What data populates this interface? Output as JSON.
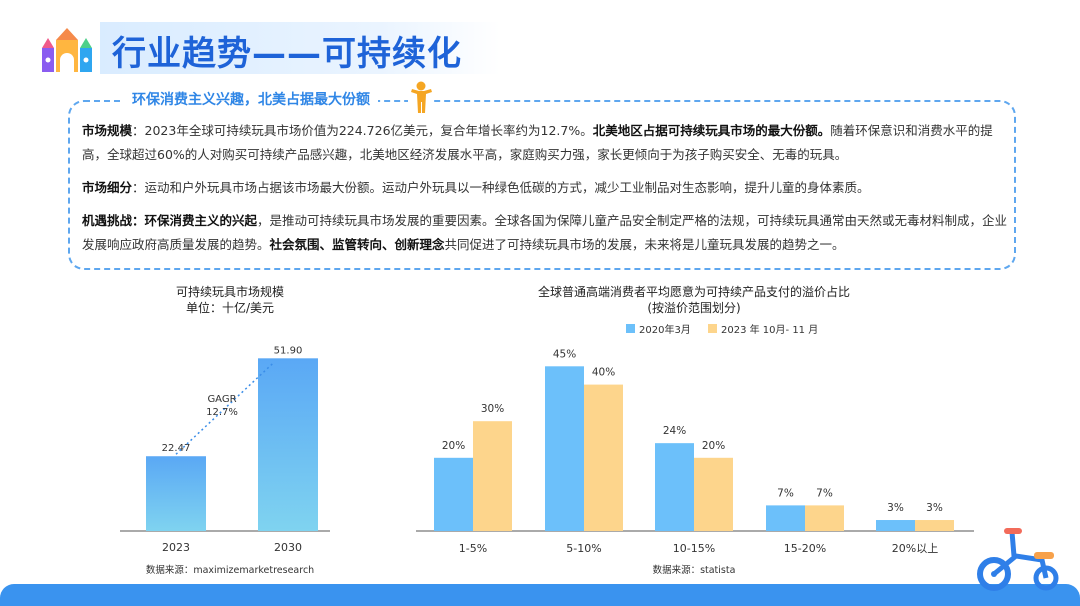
{
  "header": {
    "title": "行业趋势——可持续化",
    "logo_icon": "toy-castle-icon"
  },
  "summary": {
    "subtitle": "环保消费主义兴趣，北美占据最大份额",
    "subtitle_icon": "child-icon",
    "p1_label": "市场规模",
    "p1_text1": "：2023年全球可持续玩具市场价值为224.726亿美元，复合年增长率约为12.7%。",
    "p1_bold": "北美地区占据可持续玩具市场的最大份额。",
    "p1_text2": "随着环保意识和消费水平的提高，全球超过60%的人对购买可持续产品感兴趣，北美地区经济发展水平高，家庭购买力强，家长更倾向于为孩子购买安全、无毒的玩具。",
    "p2_label": "市场细分",
    "p2_text": "：运动和户外玩具市场占据该市场最大份额。运动户外玩具以一种绿色低碳的方式，减少工业制品对生态影响，提升儿童的身体素质。",
    "p3_label": "机遇挑战：",
    "p3_bold1": "环保消费主义的兴起",
    "p3_text1": "，是推动可持续玩具市场发展的重要因素。全球各国为保障儿童产品安全制定严格的法规，可持续玩具通常由天然或无毒材料制成，企业发展响应政府高质量发展的趋势。",
    "p3_bold2": "社会氛围、监管转向、创新理念",
    "p3_text2": "共同促进了可持续玩具市场的发展，未来将是儿童玩具发展的趋势之一。"
  },
  "chart_data": [
    {
      "type": "bar",
      "title": "可持续玩具市场规模",
      "subtitle": "单位：十亿/美元",
      "categories": [
        "2023",
        "2030"
      ],
      "values": [
        22.47,
        51.9
      ],
      "value_labels": [
        "22.47",
        "51.90"
      ],
      "annotation": [
        "GAGR",
        "12.7%"
      ],
      "source": "数据来源：maximizemarketresearch",
      "ylim": [
        0,
        55
      ],
      "colors": [
        "#7fd3f0",
        "#5aa8f5"
      ]
    },
    {
      "type": "bar",
      "title": "全球普通高端消费者平均愿意为可持续产品支付的溢价占比",
      "subtitle": "(按溢价范围划分)",
      "categories": [
        "1-5%",
        "5-10%",
        "10-15%",
        "15-20%",
        "20%以上"
      ],
      "series": [
        {
          "name": "2020年3月",
          "values": [
            20,
            45,
            24,
            7,
            3
          ],
          "labels": [
            "20%",
            "45%",
            "24%",
            "7%",
            "3%"
          ],
          "color": "#6cc0fa"
        },
        {
          "name": "2023 年 10月- 11 月",
          "values": [
            30,
            40,
            20,
            7,
            3
          ],
          "labels": [
            "30%",
            "40%",
            "20%",
            "7%",
            "3%"
          ],
          "color": "#fdd58c"
        }
      ],
      "legend": "top",
      "source": "数据来源：statista",
      "ylim": [
        0,
        50
      ]
    }
  ],
  "decor": {
    "bike_icon": "tricycle-icon"
  }
}
